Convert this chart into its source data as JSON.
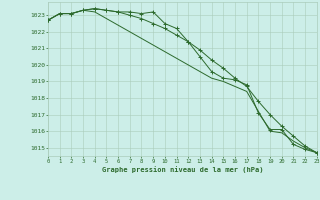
{
  "title": "Graphe pression niveau de la mer (hPa)",
  "background_color": "#cceee8",
  "grid_color": "#aaccbb",
  "line_color": "#2d6a2d",
  "marker_color": "#2d6a2d",
  "ylim": [
    1014.5,
    1023.8
  ],
  "yticks": [
    1015,
    1016,
    1017,
    1018,
    1019,
    1020,
    1021,
    1022,
    1023
  ],
  "xlim": [
    0,
    23
  ],
  "xticks": [
    0,
    1,
    2,
    3,
    4,
    5,
    6,
    7,
    8,
    9,
    10,
    11,
    12,
    13,
    14,
    15,
    16,
    17,
    18,
    19,
    20,
    21,
    22,
    23
  ],
  "series1_x": [
    0,
    1,
    2,
    3,
    4,
    5,
    6,
    7,
    8,
    9,
    10,
    11,
    12,
    13,
    14,
    15,
    16,
    17,
    18,
    19,
    20,
    21,
    22,
    23
  ],
  "series1_y": [
    1022.7,
    1023.1,
    1023.1,
    1023.3,
    1023.4,
    1023.3,
    1023.2,
    1023.2,
    1023.1,
    1023.2,
    1022.5,
    1022.2,
    1021.4,
    1020.5,
    1019.6,
    1019.2,
    1019.1,
    1018.8,
    1017.1,
    1016.1,
    1016.1,
    1015.2,
    1014.9,
    1014.7
  ],
  "series2_x": [
    0,
    1,
    2,
    3,
    4,
    5,
    6,
    7,
    8,
    9,
    10,
    11,
    12,
    13,
    14,
    15,
    16,
    17,
    18,
    19,
    20,
    21,
    22,
    23
  ],
  "series2_y": [
    1022.7,
    1023.1,
    1023.1,
    1023.3,
    1023.4,
    1023.3,
    1023.2,
    1023.0,
    1022.8,
    1022.5,
    1022.2,
    1021.8,
    1021.4,
    1020.9,
    1020.3,
    1019.8,
    1019.2,
    1018.7,
    1017.8,
    1017.0,
    1016.3,
    1015.7,
    1015.1,
    1014.7
  ],
  "series3_x": [
    0,
    1,
    2,
    3,
    4,
    5,
    6,
    7,
    8,
    9,
    10,
    11,
    12,
    13,
    14,
    15,
    16,
    17,
    18,
    19,
    20,
    21,
    22,
    23
  ],
  "series3_y": [
    1022.7,
    1023.1,
    1023.1,
    1023.3,
    1023.2,
    1022.8,
    1022.4,
    1022.0,
    1021.6,
    1021.2,
    1020.8,
    1020.4,
    1020.0,
    1019.6,
    1019.2,
    1019.0,
    1018.7,
    1018.4,
    1017.2,
    1016.0,
    1015.9,
    1015.4,
    1015.0,
    1014.7
  ]
}
